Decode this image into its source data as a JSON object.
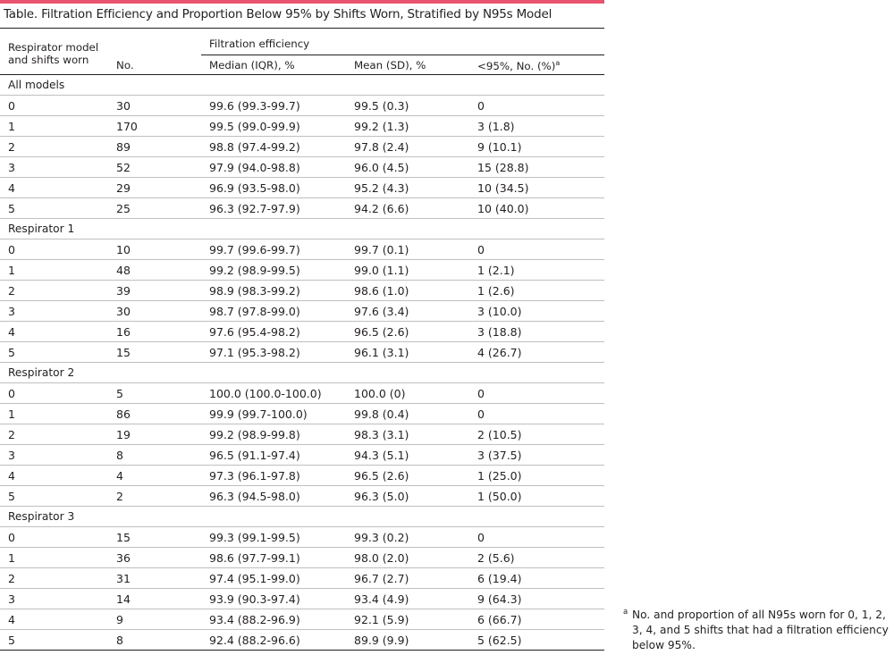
{
  "title": "Table. Filtration Efficiency and Proportion Below 95% by Shifts Worn, Stratified by N95s Model",
  "header": {
    "col1_line1": "Respirator model",
    "col1_line2": "and shifts worn",
    "col2": "No.",
    "group": "Filtration efficiency",
    "col3": "Median (IQR), %",
    "col4": "Mean (SD), %",
    "col5": "<95%, No. (%)",
    "col5_sup": "a"
  },
  "groups": [
    {
      "label": "All models",
      "rows": [
        [
          "0",
          "30",
          "99.6 (99.3-99.7)",
          "99.5 (0.3)",
          "0"
        ],
        [
          "1",
          "170",
          "99.5 (99.0-99.9)",
          "99.2 (1.3)",
          "3 (1.8)"
        ],
        [
          "2",
          "89",
          "98.8 (97.4-99.2)",
          "97.8 (2.4)",
          "9 (10.1)"
        ],
        [
          "3",
          "52",
          "97.9 (94.0-98.8)",
          "96.0 (4.5)",
          "15 (28.8)"
        ],
        [
          "4",
          "29",
          "96.9 (93.5-98.0)",
          "95.2 (4.3)",
          "10 (34.5)"
        ],
        [
          "5",
          "25",
          "96.3 (92.7-97.9)",
          "94.2 (6.6)",
          "10 (40.0)"
        ]
      ]
    },
    {
      "label": "Respirator 1",
      "rows": [
        [
          "0",
          "10",
          "99.7 (99.6-99.7)",
          "99.7 (0.1)",
          "0"
        ],
        [
          "1",
          "48",
          "99.2 (98.9-99.5)",
          "99.0 (1.1)",
          "1 (2.1)"
        ],
        [
          "2",
          "39",
          "98.9 (98.3-99.2)",
          "98.6 (1.0)",
          "1 (2.6)"
        ],
        [
          "3",
          "30",
          "98.7 (97.8-99.0)",
          "97.6 (3.4)",
          "3 (10.0)"
        ],
        [
          "4",
          "16",
          "97.6 (95.4-98.2)",
          "96.5 (2.6)",
          "3 (18.8)"
        ],
        [
          "5",
          "15",
          "97.1 (95.3-98.2)",
          "96.1 (3.1)",
          "4 (26.7)"
        ]
      ]
    },
    {
      "label": "Respirator 2",
      "rows": [
        [
          "0",
          "5",
          "100.0 (100.0-100.0)",
          "100.0 (0)",
          "0"
        ],
        [
          "1",
          "86",
          "99.9 (99.7-100.0)",
          "99.8 (0.4)",
          "0"
        ],
        [
          "2",
          "19",
          "99.2 (98.9-99.8)",
          "98.3 (3.1)",
          "2 (10.5)"
        ],
        [
          "3",
          "8",
          "96.5 (91.1-97.4)",
          "94.3 (5.1)",
          "3 (37.5)"
        ],
        [
          "4",
          "4",
          "97.3 (96.1-97.8)",
          "96.5 (2.6)",
          "1 (25.0)"
        ],
        [
          "5",
          "2",
          "96.3 (94.5-98.0)",
          "96.3 (5.0)",
          "1 (50.0)"
        ]
      ]
    },
    {
      "label": "Respirator 3",
      "rows": [
        [
          "0",
          "15",
          "99.3 (99.1-99.5)",
          "99.3 (0.2)",
          "0"
        ],
        [
          "1",
          "36",
          "98.6 (97.7-99.1)",
          "98.0 (2.0)",
          "2 (5.6)"
        ],
        [
          "2",
          "31",
          "97.4 (95.1-99.0)",
          "96.7 (2.7)",
          "6 (19.4)"
        ],
        [
          "3",
          "14",
          "93.9 (90.3-97.4)",
          "93.4 (4.9)",
          "9 (64.3)"
        ],
        [
          "4",
          "9",
          "93.4 (88.2-96.9)",
          "92.1 (5.9)",
          "6 (66.7)"
        ],
        [
          "5",
          "8",
          "92.4 (88.2-96.6)",
          "89.9 (9.9)",
          "5 (62.5)"
        ]
      ]
    }
  ],
  "footnote": {
    "mark": "a",
    "text": "No. and proportion of all N95s worn for 0, 1, 2, 3, 4, and 5 shifts that had a filtration efficiency below 95%."
  }
}
